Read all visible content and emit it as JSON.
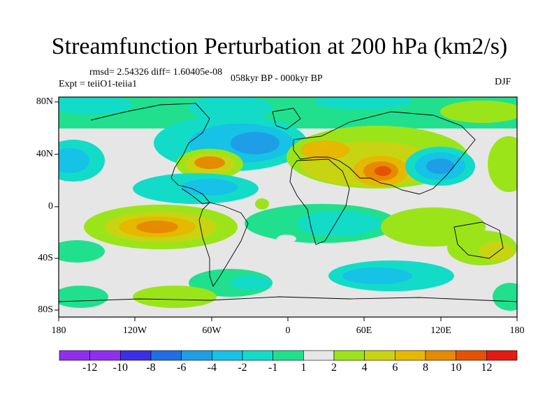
{
  "title": "Streamfunction Perturbation at 200 hPa (km2/s)",
  "stats": "rmsd= 2.54326 diff= 1.60405e-08",
  "experiment": "Expt = teiiO1-teiia1",
  "period": "058kyr BP - 000kyr BP",
  "season": "DJF",
  "y_axis_labels": [
    "80N",
    "40N",
    "0",
    "40S",
    "80S"
  ],
  "x_axis_labels": [
    "180",
    "120W",
    "60W",
    "0",
    "60E",
    "120E",
    "180"
  ],
  "colorbar": {
    "labels": [
      "-12",
      "-10",
      "-8",
      "-6",
      "-4",
      "-2",
      "-1",
      "1",
      "2",
      "4",
      "6",
      "8",
      "10",
      "12"
    ],
    "colors": [
      "#8f2ff0",
      "#3b2fe6",
      "#1f6ee6",
      "#1d9ee6",
      "#16c2e6",
      "#12dcc8",
      "#20e08e",
      "#e6e6e6",
      "#9ce41a",
      "#c8d412",
      "#e6b800",
      "#e68a00",
      "#e65200",
      "#e61a10"
    ]
  },
  "colors": {
    "land_outline": "#000000",
    "neutral": "#e6e6e6"
  }
}
